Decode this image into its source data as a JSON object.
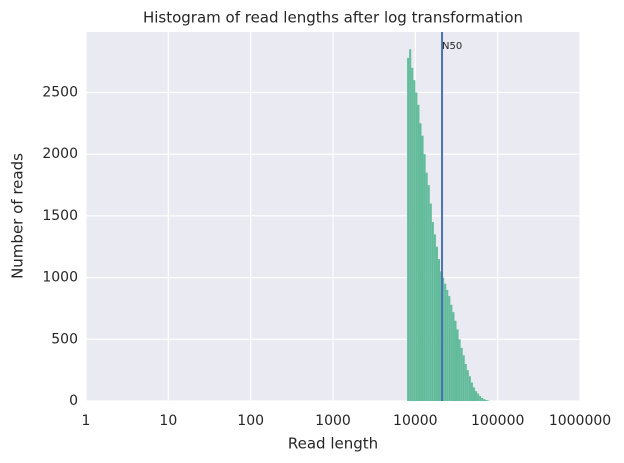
{
  "chart_data": {
    "type": "histogram",
    "title": "Histogram of read lengths after log transformation",
    "x_label": "Read length",
    "y_label": "Number of reads",
    "xscale": "log",
    "bins": [
      7943.3,
      8414.0,
      8912.5,
      9440.6,
      10000,
      10592.5,
      11220.2,
      11885.0,
      12589.3,
      13335.2,
      14125.4,
      14962.4,
      15848.9,
      16788.0,
      17782.8,
      18836.5,
      19952.6,
      21134.9,
      22387.2,
      23713.7,
      25118.9,
      26607.3,
      28183.8,
      29853.8,
      31622.8,
      33496.5,
      35481.3,
      37583.7,
      39810.7,
      42169.7,
      44668.4,
      47315.1,
      50118.7,
      53088.4,
      56234.1,
      59566.2,
      63095.7,
      66834.4,
      70794.6,
      74989.4,
      79432.8
    ],
    "values": [
      2780,
      2850,
      2700,
      2600,
      2500,
      2400,
      2250,
      2150,
      2000,
      1850,
      1750,
      1600,
      1450,
      1350,
      1250,
      1150,
      1050,
      1000,
      950,
      900,
      850,
      780,
      720,
      650,
      580,
      500,
      430,
      370,
      300,
      250,
      200,
      150,
      110,
      80,
      60,
      40,
      25,
      15,
      8,
      3
    ],
    "color": "#62bb9b",
    "annotation": {
      "label": "N50",
      "value": 21100,
      "color": "#4c72b0"
    },
    "xlim": [
      1,
      1000000
    ],
    "xticks": [
      1,
      10,
      100,
      1000,
      10000,
      100000,
      1000000
    ],
    "ylim": [
      0,
      2990
    ],
    "yticks": [
      0,
      500,
      1000,
      1500,
      2000,
      2500
    ],
    "grid": true
  }
}
